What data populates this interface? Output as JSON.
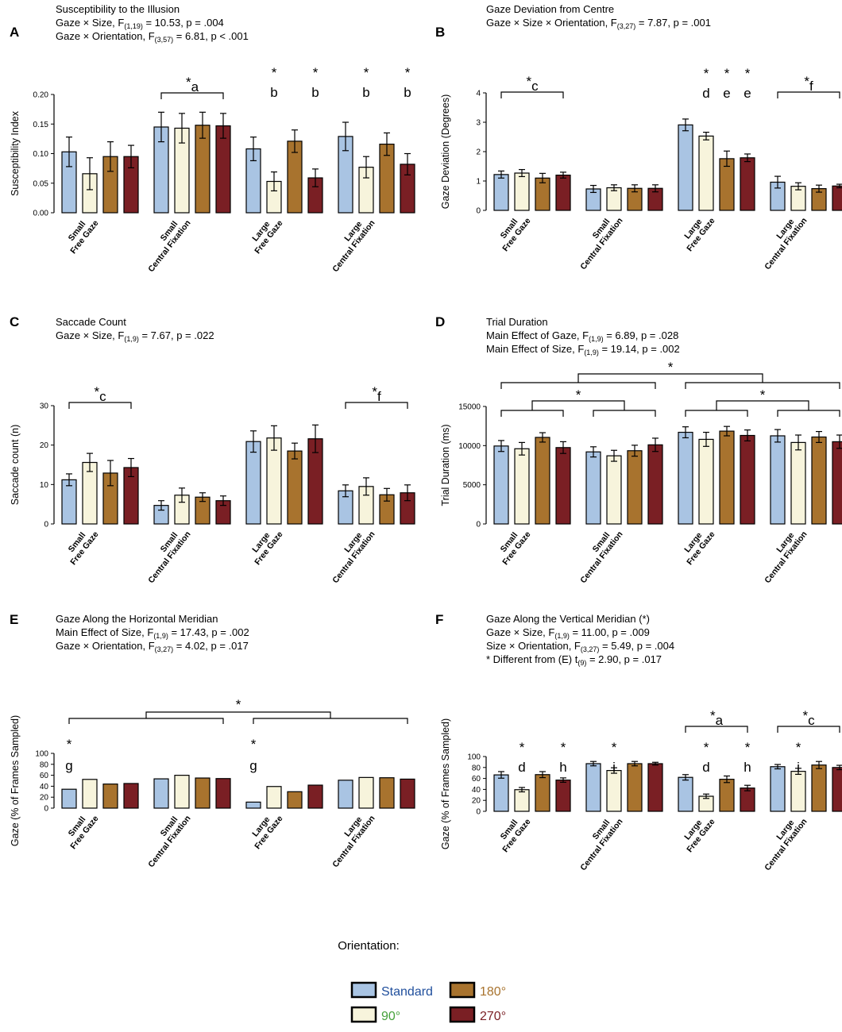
{
  "chart_data": [
    {
      "type": "bar",
      "panel": "A",
      "title_lines": [
        [
          "Susceptibility to the Illusion"
        ],
        [
          "Gaze × Size, F",
          "(1,19)",
          " = 10.53, p = .004"
        ],
        [
          "Gaze × Orientation, F",
          "(3,57)",
          " = 6.81, p < .001"
        ]
      ],
      "ylabel": "Susceptibility Index",
      "ylim": [
        0,
        0.2
      ],
      "yticks": [
        "0.00",
        "0.05",
        "0.10",
        "0.15",
        "0.20"
      ],
      "groups": [
        [
          "Small",
          "Free Gaze"
        ],
        [
          "Small",
          "Central Fixation"
        ],
        [
          "Large",
          "Free Gaze"
        ],
        [
          "Large",
          "Central Fixation"
        ]
      ],
      "series": [
        {
          "name": "Standard",
          "values": [
            0.103,
            0.145,
            0.108,
            0.129
          ],
          "errors": [
            0.025,
            0.025,
            0.02,
            0.024
          ]
        },
        {
          "name": "90°",
          "values": [
            0.066,
            0.143,
            0.053,
            0.077
          ],
          "errors": [
            0.027,
            0.025,
            0.016,
            0.018
          ]
        },
        {
          "name": "180°",
          "values": [
            0.095,
            0.148,
            0.121,
            0.116
          ],
          "errors": [
            0.025,
            0.022,
            0.019,
            0.019
          ]
        },
        {
          "name": "270°",
          "values": [
            0.095,
            0.147,
            0.059,
            0.082
          ],
          "errors": [
            0.019,
            0.021,
            0.015,
            0.018
          ]
        }
      ],
      "brackets": [
        {
          "from": [
            1,
            0
          ],
          "to": [
            1,
            3
          ],
          "label": "*",
          "suffix": "a"
        }
      ],
      "annotations": [
        {
          "group": 2,
          "bar": 1,
          "lines": [
            "*",
            "b"
          ]
        },
        {
          "group": 2,
          "bar": 3,
          "lines": [
            "*",
            "b"
          ]
        },
        {
          "group": 3,
          "bar": 1,
          "lines": [
            "*",
            "b"
          ]
        },
        {
          "group": 3,
          "bar": 3,
          "lines": [
            "*",
            "b"
          ]
        }
      ]
    },
    {
      "type": "bar",
      "panel": "B",
      "title_lines": [
        [
          "Gaze Deviation from Centre"
        ],
        [
          "Gaze × Size × Orientation, F",
          "(3,27)",
          " = 7.87, p = .001"
        ]
      ],
      "ylabel": "Gaze  Deviation (Degrees)",
      "ylim": [
        0,
        4
      ],
      "yticks": [
        "0",
        "1",
        "2",
        "3",
        "4"
      ],
      "groups": [
        [
          "Small",
          "Free Gaze"
        ],
        [
          "Small",
          "Central Fixation"
        ],
        [
          "Large",
          "Free Gaze"
        ],
        [
          "Large",
          "Central Fixation"
        ]
      ],
      "series": [
        {
          "name": "Standard",
          "values": [
            1.22,
            0.73,
            2.91,
            0.96
          ],
          "errors": [
            0.12,
            0.12,
            0.2,
            0.2
          ]
        },
        {
          "name": "90°",
          "values": [
            1.27,
            0.77,
            2.53,
            0.82
          ],
          "errors": [
            0.12,
            0.1,
            0.13,
            0.12
          ]
        },
        {
          "name": "180°",
          "values": [
            1.1,
            0.75,
            1.76,
            0.74
          ],
          "errors": [
            0.16,
            0.12,
            0.26,
            0.12
          ]
        },
        {
          "name": "270°",
          "values": [
            1.2,
            0.75,
            1.79,
            0.83
          ],
          "errors": [
            0.1,
            0.12,
            0.13,
            0.06
          ]
        }
      ],
      "brackets": [
        {
          "from": [
            0,
            0
          ],
          "to": [
            0,
            3
          ],
          "label": "*",
          "suffix": "c"
        },
        {
          "from": [
            3,
            0
          ],
          "to": [
            3,
            3
          ],
          "label": "*",
          "suffix": "f"
        }
      ],
      "annotations": [
        {
          "group": 2,
          "bar": 1,
          "lines": [
            "*",
            "d"
          ]
        },
        {
          "group": 2,
          "bar": 2,
          "lines": [
            "*",
            "e"
          ]
        },
        {
          "group": 2,
          "bar": 3,
          "lines": [
            "*",
            "e"
          ]
        }
      ]
    },
    {
      "type": "bar",
      "panel": "C",
      "title_lines": [
        [
          "Saccade Count"
        ],
        [
          "Gaze × Size, F",
          "(1,9)",
          " = 7.67, p = .022"
        ]
      ],
      "ylabel": "Saccade count (n)",
      "ylim": [
        0,
        30
      ],
      "yticks": [
        "0",
        "10",
        "20",
        "30"
      ],
      "groups": [
        [
          "Small",
          "Free Gaze"
        ],
        [
          "Small",
          "Central Fixation"
        ],
        [
          "Large",
          "Free Gaze"
        ],
        [
          "Large",
          "Central Fixation"
        ]
      ],
      "series": [
        {
          "name": "Standard",
          "values": [
            11.2,
            4.7,
            20.9,
            8.4
          ],
          "errors": [
            1.5,
            1.2,
            2.7,
            1.5
          ]
        },
        {
          "name": "90°",
          "values": [
            15.6,
            7.3,
            21.8,
            9.5
          ],
          "errors": [
            2.3,
            1.8,
            3.1,
            2.2
          ]
        },
        {
          "name": "180°",
          "values": [
            12.9,
            6.8,
            18.5,
            7.4
          ],
          "errors": [
            3.2,
            1.1,
            2.0,
            1.6
          ]
        },
        {
          "name": "270°",
          "values": [
            14.3,
            5.9,
            21.6,
            7.9
          ],
          "errors": [
            2.3,
            1.2,
            3.5,
            2.0
          ]
        }
      ],
      "brackets": [
        {
          "from": [
            0,
            0
          ],
          "to": [
            0,
            3
          ],
          "label": "*",
          "suffix": "c"
        },
        {
          "from": [
            3,
            0
          ],
          "to": [
            3,
            3
          ],
          "label": "*",
          "suffix": "f"
        }
      ],
      "annotations": []
    },
    {
      "type": "bar",
      "panel": "D",
      "title_lines": [
        [
          "Trial  Duration"
        ],
        [
          "Main Effect of Gaze, F",
          "(1,9)",
          " = 6.89, p = .028"
        ],
        [
          "Main Effect of Size, F",
          "(1,9)",
          " = 19.14, p = .002"
        ]
      ],
      "ylabel": "Trial Duration (ms)",
      "ylim": [
        0,
        15000
      ],
      "yticks": [
        "0",
        "5000",
        "10000",
        "15000"
      ],
      "groups": [
        [
          "Small",
          "Free Gaze"
        ],
        [
          "Small",
          "Central Fixation"
        ],
        [
          "Large",
          "Free Gaze"
        ],
        [
          "Large",
          "Central Fixation"
        ]
      ],
      "series": [
        {
          "name": "Standard",
          "values": [
            9950,
            9200,
            11700,
            11250
          ],
          "errors": [
            700,
            650,
            700,
            800
          ]
        },
        {
          "name": "90°",
          "values": [
            9600,
            8700,
            10800,
            10400
          ],
          "errors": [
            800,
            700,
            900,
            950
          ]
        },
        {
          "name": "180°",
          "values": [
            11050,
            9350,
            11850,
            11100
          ],
          "errors": [
            600,
            700,
            600,
            700
          ]
        },
        {
          "name": "270°",
          "values": [
            9750,
            10100,
            11300,
            10500
          ],
          "errors": [
            750,
            850,
            700,
            850
          ]
        }
      ],
      "brackets": [
        {
          "from": [
            0,
            0
          ],
          "to": [
            0,
            3
          ],
          "label": "",
          "level": 0
        },
        {
          "from": [
            1,
            0
          ],
          "to": [
            1,
            3
          ],
          "label": "",
          "level": 0
        },
        {
          "from": [
            2,
            0
          ],
          "to": [
            2,
            3
          ],
          "label": "",
          "level": 0
        },
        {
          "from": [
            3,
            0
          ],
          "to": [
            3,
            3
          ],
          "label": "",
          "level": 0
        },
        {
          "from": [
            0,
            0
          ],
          "to": [
            1,
            3
          ],
          "label": "",
          "level": 1
        },
        {
          "from": [
            2,
            0
          ],
          "to": [
            3,
            3
          ],
          "label": "",
          "level": 1
        },
        {
          "from": [
            0,
            0
          ],
          "to": [
            1,
            3
          ],
          "label": "",
          "level": 2
        },
        {
          "from": [
            2,
            0
          ],
          "to": [
            3,
            3
          ],
          "label": "",
          "level": 2
        }
      ],
      "annotations": []
    },
    {
      "type": "bar",
      "panel": "E",
      "title_lines": [
        [
          "Gaze Along the Horizontal Meridian"
        ],
        [
          "Main Effect of Size, F",
          "(1,9)",
          " = 17.43, p = .002"
        ],
        [
          "Gaze × Orientation, F",
          "(3,27)",
          " = 4.02, p = .017"
        ]
      ],
      "ylabel": "Gaze (% of Frames  Sampled)",
      "ylim": [
        0,
        100
      ],
      "yticks": [
        "0",
        "20",
        "40",
        "60",
        "80",
        "100"
      ],
      "groups": [
        [
          "Small",
          "Free Gaze"
        ],
        [
          "Small",
          "Central Fixation"
        ],
        [
          "Large",
          "Free Gaze"
        ],
        [
          "Large",
          "Central Fixation"
        ]
      ],
      "series": [
        {
          "name": "Standard",
          "values": [
            34.5,
            53.5,
            11,
            51
          ]
        },
        {
          "name": "90°",
          "values": [
            52.5,
            60,
            39.5,
            56
          ]
        },
        {
          "name": "180°",
          "values": [
            44,
            55,
            30,
            55.5
          ]
        },
        {
          "name": "270°",
          "values": [
            45,
            54,
            42,
            53
          ]
        }
      ],
      "brackets": [],
      "annotations": [
        {
          "group": 0,
          "bar": 0,
          "lines": [
            "*",
            "g"
          ]
        },
        {
          "group": 2,
          "bar": 0,
          "lines": [
            "*",
            "g"
          ]
        }
      ]
    },
    {
      "type": "bar",
      "panel": "F",
      "title_lines": [
        [
          "Gaze Along the Vertical Meridian (*)"
        ],
        [
          "Gaze × Size, F",
          "(1,9)",
          " = 11.00, p = .009"
        ],
        [
          "Size × Orientation, F",
          "(3,27)",
          " = 5.49, p = .004"
        ],
        [
          "* Different from (E) t",
          "(9)",
          " = 2.90, p = .017"
        ]
      ],
      "ylabel": "Gaze (% of Frames  Sampled)",
      "ylim": [
        0,
        100
      ],
      "yticks": [
        "0",
        "20",
        "40",
        "60",
        "80",
        "100"
      ],
      "groups": [
        [
          "Small",
          "Free Gaze"
        ],
        [
          "Small",
          "Central Fixation"
        ],
        [
          "Large",
          "Free Gaze"
        ],
        [
          "Large",
          "Central Fixation"
        ]
      ],
      "series": [
        {
          "name": "Standard",
          "values": [
            66.5,
            87,
            62,
            81.5
          ],
          "errors": [
            6,
            4,
            5,
            4
          ]
        },
        {
          "name": "90°",
          "values": [
            39.5,
            74.5,
            27.5,
            73
          ],
          "errors": [
            4,
            5,
            4,
            5.5
          ]
        },
        {
          "name": "180°",
          "values": [
            67,
            87,
            58.5,
            84.5
          ],
          "errors": [
            5.5,
            4,
            6,
            6.5
          ]
        },
        {
          "name": "270°",
          "values": [
            57,
            87,
            42.5,
            80
          ],
          "errors": [
            4,
            2.5,
            5,
            4
          ]
        }
      ],
      "brackets": [
        {
          "from": [
            2,
            0
          ],
          "to": [
            2,
            3
          ],
          "label": "*",
          "suffix": "a"
        },
        {
          "from": [
            3,
            0
          ],
          "to": [
            3,
            3
          ],
          "label": "*",
          "suffix": "c"
        }
      ],
      "annotations": [
        {
          "group": 0,
          "bar": 1,
          "lines": [
            "*",
            "d"
          ]
        },
        {
          "group": 0,
          "bar": 3,
          "lines": [
            "*",
            "h"
          ]
        },
        {
          "group": 1,
          "bar": 1,
          "lines": [
            "*",
            "i"
          ]
        },
        {
          "group": 2,
          "bar": 1,
          "lines": [
            "*",
            "d"
          ]
        },
        {
          "group": 2,
          "bar": 3,
          "lines": [
            "*",
            "h"
          ]
        },
        {
          "group": 3,
          "bar": 1,
          "lines": [
            "*",
            "i"
          ]
        }
      ]
    }
  ],
  "legend": {
    "title": "Orientation:",
    "items": [
      {
        "label": "Standard",
        "fill": "#a9c4e3",
        "text_color": "#1f4e9c"
      },
      {
        "label": "90°",
        "fill": "#f7f4dc",
        "text_color": "#45a23a"
      },
      {
        "label": "180°",
        "fill": "#a8732e",
        "text_color": "#a8732e"
      },
      {
        "label": "270°",
        "fill": "#7a1f24",
        "text_color": "#7a1f24"
      }
    ]
  },
  "colors": {
    "standard": "#a9c4e3",
    "ninety": "#f7f4dc",
    "oneeighty": "#a8732e",
    "twoseventy": "#7a1f24"
  }
}
